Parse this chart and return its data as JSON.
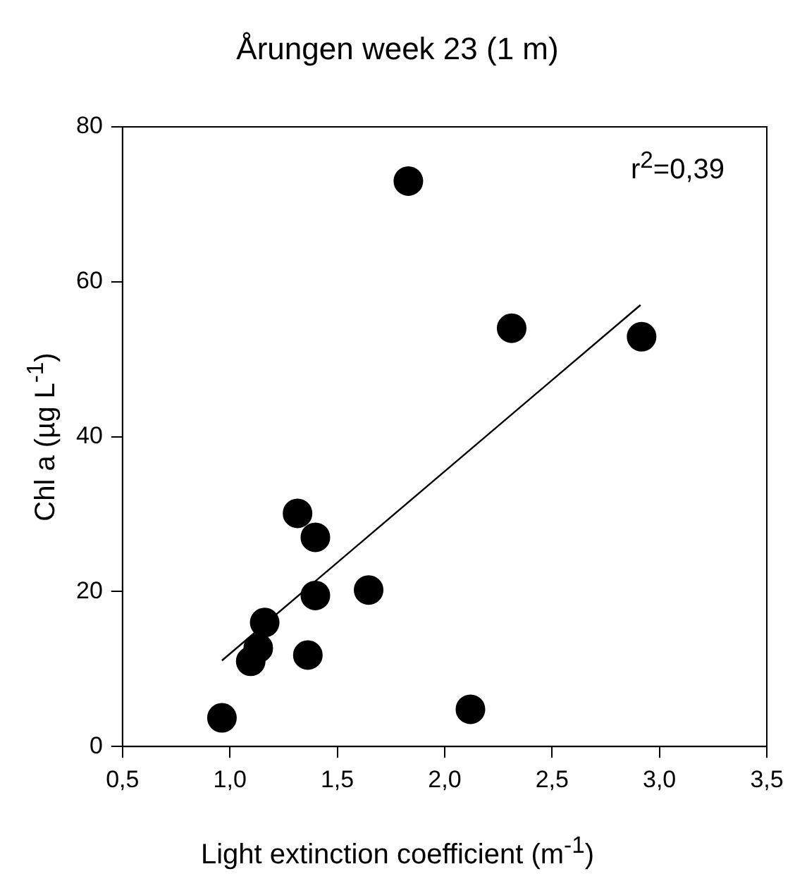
{
  "chart_data": {
    "type": "scatter",
    "title": "Årungen week 23 (1 m)",
    "xlabel": "Light extinction coefficient (m$^{-1}$)",
    "ylabel": "Chl a (µg L$^{-1}$)",
    "annotations": [
      "r$^{2}$=0,39"
    ],
    "series": [
      {
        "color": "#000000",
        "marker": "circle",
        "x": [
          0.963,
          1.097,
          1.132,
          1.162,
          1.315,
          1.398,
          1.398,
          1.363,
          1.646,
          1.831,
          2.12,
          2.312,
          2.917
        ],
        "values": [
          3.7,
          11.0,
          12.7,
          16.0,
          30.1,
          27.0,
          19.5,
          11.8,
          20.2,
          73.0,
          4.8,
          54.0,
          52.9
        ]
      },
      {
        "type": "line",
        "color": "#000000",
        "marker": "none",
        "x": [
          0.963,
          2.912
        ],
        "values": [
          11.1,
          57.0
        ]
      }
    ],
    "xlim": [
      0.5,
      3.5
    ],
    "xticks": [
      {
        "value": 0.5,
        "label": "0,5"
      },
      {
        "value": 1.0,
        "label": "1,0"
      },
      {
        "value": 1.5,
        "label": "1,5"
      },
      {
        "value": 2.0,
        "label": "2,0"
      },
      {
        "value": 2.5,
        "label": "2,5"
      },
      {
        "value": 3.0,
        "label": "3,0"
      },
      {
        "value": 3.5,
        "label": "3,5"
      }
    ],
    "ylim": [
      0,
      80
    ],
    "yticks": [
      0,
      20,
      40,
      60,
      80
    ],
    "grid": false,
    "legend": false
  }
}
